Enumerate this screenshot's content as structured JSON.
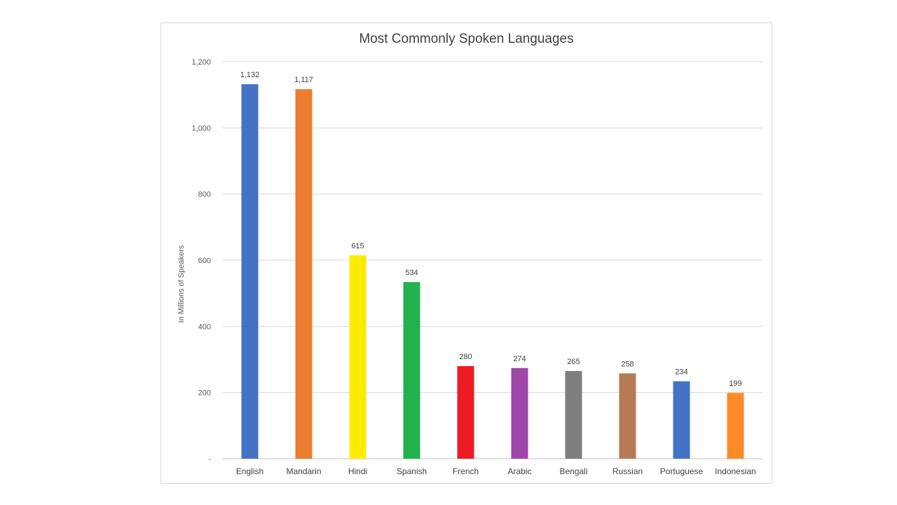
{
  "chart_data": {
    "type": "bar",
    "title": "Most Commonly Spoken Languages",
    "xlabel": "",
    "ylabel": "In Millions of Speakers",
    "ylim": [
      0,
      1200
    ],
    "y_ticks": [
      "-",
      "200",
      "400",
      "600",
      "800",
      "1,000",
      "1,200"
    ],
    "y_tick_values": [
      0,
      200,
      400,
      600,
      800,
      1000,
      1200
    ],
    "grid": true,
    "categories": [
      "English",
      "Mandarin",
      "Hindi",
      "Spanish",
      "French",
      "Arabic",
      "Bengali",
      "Russian",
      "Portuguese",
      "Indonesian"
    ],
    "values": [
      1132,
      1117,
      615,
      534,
      280,
      274,
      265,
      258,
      234,
      199
    ],
    "data_labels": [
      "1,132",
      "1,117",
      "615",
      "534",
      "280",
      "274",
      "265",
      "258",
      "234",
      "199"
    ],
    "colors": [
      "#4472c4",
      "#ed7d31",
      "#ffeb00",
      "#22b14c",
      "#ed1c24",
      "#9e47a8",
      "#7f7f7f",
      "#b67b55",
      "#4472c4",
      "#ff8b28"
    ]
  }
}
